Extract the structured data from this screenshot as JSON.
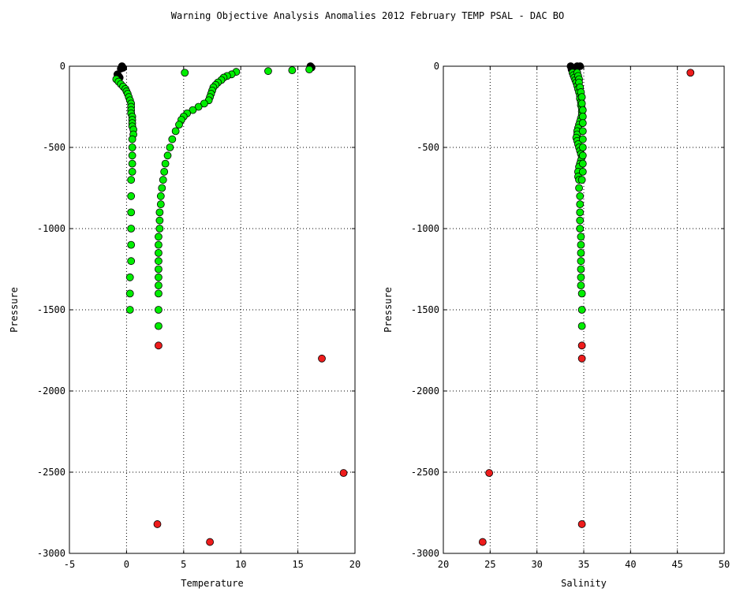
{
  "figure": {
    "title": "Warning Objective Analysis Anomalies 2012 February TEMP PSAL - DAC BO"
  },
  "colors": {
    "good": "#00ee00",
    "flagged": "#ee1c1c",
    "reference": "#000000"
  },
  "chart_data": [
    {
      "type": "scatter",
      "xlabel": "Temperature",
      "ylabel": "Pressure",
      "xlim": [
        -5,
        20
      ],
      "ylim": [
        -3000,
        0
      ],
      "xticks": [
        -5,
        0,
        5,
        10,
        15,
        20
      ],
      "yticks": [
        0,
        -500,
        -1000,
        -1500,
        -2000,
        -2500,
        -3000
      ],
      "grid": true,
      "series": [
        {
          "color": "#000000",
          "points": [
            [
              -0.4,
              0
            ],
            [
              -0.3,
              -10
            ],
            [
              -0.5,
              -15
            ],
            [
              16.1,
              0
            ],
            [
              16.2,
              -8
            ],
            [
              -0.8,
              -50
            ],
            [
              -0.7,
              -60
            ],
            [
              -0.6,
              -70
            ]
          ]
        },
        {
          "color": "#00ee00",
          "points": [
            [
              16.0,
              -20
            ],
            [
              14.5,
              -25
            ],
            [
              12.4,
              -30
            ],
            [
              9.6,
              -35
            ],
            [
              9.2,
              -50
            ],
            [
              8.8,
              -60
            ],
            [
              8.5,
              -70
            ],
            [
              8.3,
              -85
            ],
            [
              8.0,
              -100
            ],
            [
              7.8,
              -115
            ],
            [
              7.6,
              -130
            ],
            [
              7.5,
              -150
            ],
            [
              7.4,
              -170
            ],
            [
              7.3,
              -190
            ],
            [
              7.2,
              -210
            ],
            [
              6.8,
              -230
            ],
            [
              6.3,
              -250
            ],
            [
              5.8,
              -270
            ],
            [
              5.3,
              -290
            ],
            [
              5.0,
              -310
            ],
            [
              4.8,
              -330
            ],
            [
              4.6,
              -360
            ],
            [
              4.3,
              -400
            ],
            [
              4.0,
              -450
            ],
            [
              3.8,
              -500
            ],
            [
              3.6,
              -550
            ],
            [
              3.4,
              -600
            ],
            [
              3.3,
              -650
            ],
            [
              3.2,
              -700
            ],
            [
              3.1,
              -750
            ],
            [
              3.0,
              -800
            ],
            [
              3.0,
              -850
            ],
            [
              2.9,
              -900
            ],
            [
              2.9,
              -950
            ],
            [
              2.9,
              -1000
            ],
            [
              2.8,
              -1050
            ],
            [
              2.8,
              -1100
            ],
            [
              2.8,
              -1150
            ],
            [
              2.8,
              -1200
            ],
            [
              2.8,
              -1250
            ],
            [
              2.8,
              -1300
            ],
            [
              2.8,
              -1350
            ],
            [
              2.8,
              -1400
            ],
            [
              2.8,
              -1500
            ],
            [
              2.8,
              -1600
            ],
            [
              5.1,
              -40
            ],
            [
              -0.9,
              -80
            ],
            [
              -0.7,
              -95
            ],
            [
              -0.5,
              -110
            ],
            [
              -0.3,
              -125
            ],
            [
              -0.1,
              -140
            ],
            [
              0.0,
              -155
            ],
            [
              0.1,
              -170
            ],
            [
              0.2,
              -190
            ],
            [
              0.3,
              -210
            ],
            [
              0.4,
              -230
            ],
            [
              0.4,
              -250
            ],
            [
              0.4,
              -270
            ],
            [
              0.4,
              -290
            ],
            [
              0.5,
              -310
            ],
            [
              0.5,
              -330
            ],
            [
              0.5,
              -350
            ],
            [
              0.5,
              -370
            ],
            [
              0.6,
              -390
            ],
            [
              0.6,
              -420
            ],
            [
              0.5,
              -450
            ],
            [
              0.5,
              -500
            ],
            [
              0.5,
              -550
            ],
            [
              0.5,
              -600
            ],
            [
              0.5,
              -650
            ],
            [
              0.4,
              -700
            ],
            [
              0.4,
              -800
            ],
            [
              0.4,
              -900
            ],
            [
              0.4,
              -1000
            ],
            [
              0.4,
              -1100
            ],
            [
              0.4,
              -1200
            ],
            [
              0.3,
              -1300
            ],
            [
              0.3,
              -1400
            ],
            [
              0.3,
              -1500
            ]
          ]
        },
        {
          "color": "#ee1c1c",
          "points": [
            [
              2.8,
              -1720
            ],
            [
              17.1,
              -1800
            ],
            [
              19.0,
              -2505
            ],
            [
              2.7,
              -2820
            ],
            [
              7.3,
              -2930
            ]
          ]
        }
      ]
    },
    {
      "type": "scatter",
      "xlabel": "Salinity",
      "ylabel": "Pressure",
      "xlim": [
        20,
        50
      ],
      "ylim": [
        -3000,
        0
      ],
      "xticks": [
        20,
        25,
        30,
        35,
        40,
        45,
        50
      ],
      "yticks": [
        0,
        -500,
        -1000,
        -1500,
        -2000,
        -2500,
        -3000
      ],
      "grid": true,
      "series": [
        {
          "color": "#000000",
          "points": [
            [
              33.6,
              0
            ],
            [
              34.3,
              0
            ],
            [
              34.6,
              0
            ],
            [
              33.8,
              -10
            ],
            [
              33.7,
              -20
            ],
            [
              33.9,
              -30
            ]
          ]
        },
        {
          "color": "#00ee00",
          "points": [
            [
              33.8,
              -40
            ],
            [
              33.9,
              -55
            ],
            [
              34.0,
              -70
            ],
            [
              34.1,
              -85
            ],
            [
              34.2,
              -100
            ],
            [
              34.3,
              -120
            ],
            [
              34.4,
              -140
            ],
            [
              34.5,
              -160
            ],
            [
              34.6,
              -180
            ],
            [
              34.6,
              -200
            ],
            [
              34.7,
              -220
            ],
            [
              34.7,
              -240
            ],
            [
              34.8,
              -260
            ],
            [
              34.8,
              -280
            ],
            [
              34.8,
              -300
            ],
            [
              34.7,
              -320
            ],
            [
              34.6,
              -340
            ],
            [
              34.5,
              -360
            ],
            [
              34.4,
              -380
            ],
            [
              34.3,
              -400
            ],
            [
              34.3,
              -420
            ],
            [
              34.2,
              -440
            ],
            [
              34.3,
              -460
            ],
            [
              34.4,
              -480
            ],
            [
              34.5,
              -500
            ],
            [
              34.6,
              -520
            ],
            [
              34.7,
              -540
            ],
            [
              34.8,
              -560
            ],
            [
              34.7,
              -580
            ],
            [
              34.6,
              -600
            ],
            [
              34.5,
              -620
            ],
            [
              34.4,
              -650
            ],
            [
              34.4,
              -680
            ],
            [
              34.5,
              -700
            ],
            [
              34.5,
              -750
            ],
            [
              34.6,
              -800
            ],
            [
              34.6,
              -850
            ],
            [
              34.6,
              -900
            ],
            [
              34.6,
              -950
            ],
            [
              34.6,
              -1000
            ],
            [
              34.7,
              -1050
            ],
            [
              34.7,
              -1100
            ],
            [
              34.7,
              -1150
            ],
            [
              34.7,
              -1200
            ],
            [
              34.7,
              -1250
            ],
            [
              34.7,
              -1300
            ],
            [
              34.7,
              -1350
            ],
            [
              34.8,
              -1400
            ],
            [
              34.8,
              -1500
            ],
            [
              34.8,
              -1600
            ],
            [
              34.3,
              -40
            ],
            [
              34.4,
              -60
            ],
            [
              34.5,
              -80
            ],
            [
              34.5,
              -100
            ],
            [
              34.6,
              -130
            ],
            [
              34.7,
              -160
            ],
            [
              34.8,
              -190
            ],
            [
              34.8,
              -230
            ],
            [
              34.9,
              -270
            ],
            [
              34.9,
              -310
            ],
            [
              34.9,
              -350
            ],
            [
              34.9,
              -400
            ],
            [
              34.9,
              -450
            ],
            [
              34.9,
              -500
            ],
            [
              34.9,
              -550
            ],
            [
              34.9,
              -600
            ],
            [
              34.9,
              -650
            ],
            [
              34.8,
              -700
            ]
          ]
        },
        {
          "color": "#ee1c1c",
          "points": [
            [
              46.4,
              -40
            ],
            [
              34.8,
              -1720
            ],
            [
              34.8,
              -1800
            ],
            [
              24.9,
              -2505
            ],
            [
              34.8,
              -2820
            ],
            [
              24.2,
              -2930
            ]
          ]
        }
      ]
    }
  ]
}
